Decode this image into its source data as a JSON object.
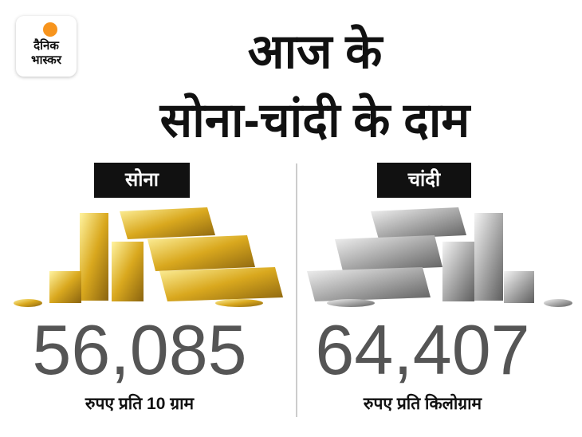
{
  "logo": {
    "line1": "दैनिक",
    "line2": "भास्कर"
  },
  "title": {
    "line1": "आज के",
    "line2": "सोना-चांदी के दाम"
  },
  "panels": [
    {
      "label": "सोना",
      "price": "56,085",
      "unit": "रुपए प्रति 10 ग्राम"
    },
    {
      "label": "चांदी",
      "price": "64,407",
      "unit": "रुपए प्रति किलोग्राम"
    }
  ]
}
